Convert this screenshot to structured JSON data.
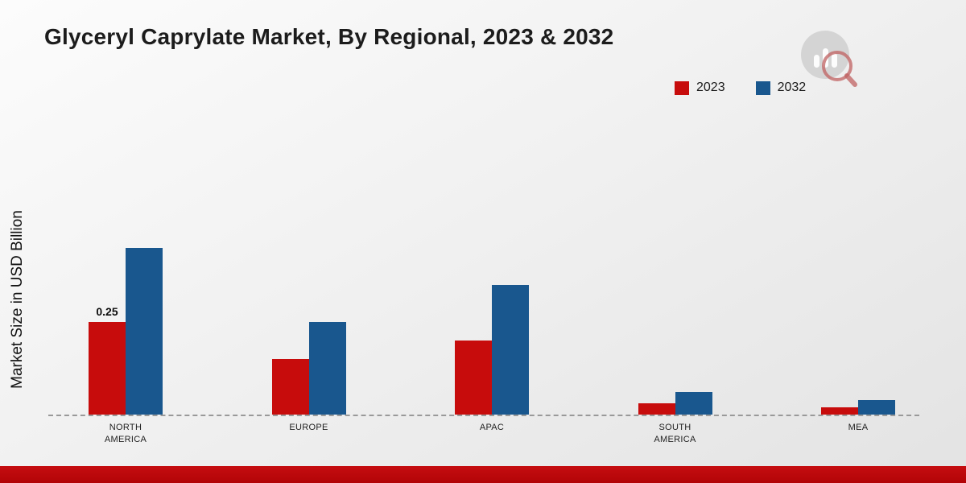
{
  "page": {
    "title": "Glyceryl Caprylate Market, By Regional, 2023 & 2032",
    "y_axis_label": "Market Size in USD Billion"
  },
  "colors": {
    "series_2023": "#c70c0c",
    "series_2032": "#19578e",
    "footer_band": "#c50d10",
    "baseline": "#999999"
  },
  "chart_data": {
    "type": "bar",
    "title": "Glyceryl Caprylate Market, By Regional, 2023 & 2032",
    "xlabel": "",
    "ylabel": "Market Size in USD Billion",
    "categories": [
      "NORTH AMERICA",
      "EUROPE",
      "APAC",
      "SOUTH AMERICA",
      "MEA"
    ],
    "category_lines": [
      [
        "NORTH",
        "AMERICA"
      ],
      [
        "EUROPE"
      ],
      [
        "APAC"
      ],
      [
        "SOUTH",
        "AMERICA"
      ],
      [
        "MEA"
      ]
    ],
    "series": [
      {
        "name": "2023",
        "color": "#c70c0c",
        "values": [
          0.25,
          0.15,
          0.2,
          0.03,
          0.02
        ]
      },
      {
        "name": "2032",
        "color": "#19578e",
        "values": [
          0.45,
          0.25,
          0.35,
          0.06,
          0.04
        ]
      }
    ],
    "data_labels": [
      {
        "series": "2023",
        "category": "NORTH AMERICA",
        "text": "0.25"
      }
    ],
    "ylim": [
      0,
      0.5
    ],
    "grid": false,
    "legend_position": "top-right",
    "baseline_style": "dashed"
  }
}
